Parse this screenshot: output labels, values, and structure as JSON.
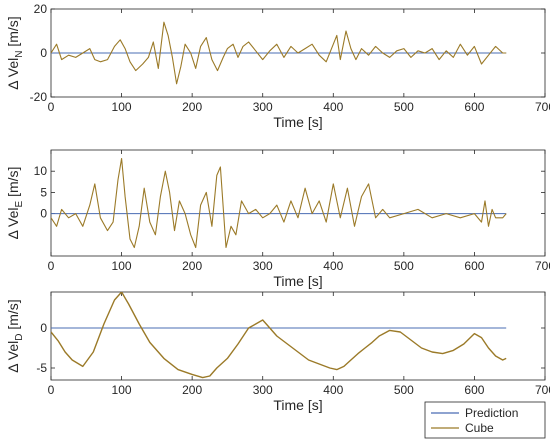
{
  "chart_data": [
    {
      "type": "line",
      "ylabel_main": "Δ Vel",
      "ylabel_sub": "N",
      "ylabel_unit": " [m/s]",
      "xlabel": "Time [s]",
      "xlim": [
        0,
        700
      ],
      "ylim": [
        -20,
        20
      ],
      "xticks": [
        0,
        100,
        200,
        300,
        400,
        500,
        600,
        700
      ],
      "yticks": [
        -20,
        0,
        20
      ],
      "series": [
        {
          "name": "Prediction",
          "color": "#4a6cb3",
          "x": [
            0,
            645
          ],
          "y": [
            0,
            0
          ]
        },
        {
          "name": "Cube",
          "color": "#9b7a28",
          "x": [
            0,
            8,
            15,
            25,
            35,
            45,
            55,
            62,
            70,
            80,
            90,
            98,
            105,
            112,
            120,
            130,
            138,
            145,
            152,
            160,
            166,
            172,
            178,
            184,
            190,
            198,
            205,
            212,
            220,
            228,
            236,
            244,
            250,
            258,
            265,
            272,
            280,
            290,
            300,
            310,
            320,
            330,
            340,
            350,
            360,
            370,
            380,
            390,
            400,
            405,
            410,
            418,
            425,
            432,
            440,
            450,
            460,
            470,
            480,
            490,
            500,
            510,
            520,
            530,
            540,
            550,
            560,
            570,
            580,
            590,
            600,
            610,
            620,
            630,
            640,
            645
          ],
          "y": [
            0,
            4,
            -3,
            -1,
            -2,
            0,
            2,
            -3,
            -4,
            -3,
            3,
            6,
            2,
            -4,
            -8,
            -5,
            -2,
            5,
            -7,
            14,
            8,
            -2,
            -14,
            -6,
            4,
            0,
            -7,
            3,
            7,
            -3,
            -8,
            -2,
            2,
            4,
            -2,
            3,
            5,
            1,
            -3,
            1,
            4,
            -2,
            3,
            0,
            2,
            4,
            -1,
            -4,
            4,
            8,
            -3,
            10,
            2,
            -3,
            2,
            -1,
            3,
            0,
            -2,
            1,
            2,
            -2,
            1,
            0,
            2,
            -3,
            1,
            -2,
            4,
            -1,
            3,
            -5,
            -1,
            3,
            0,
            0
          ]
        }
      ]
    },
    {
      "type": "line",
      "ylabel_main": "Δ Vel",
      "ylabel_sub": "E",
      "ylabel_unit": " [m/s]",
      "xlabel": "Time [s]",
      "xlim": [
        0,
        700
      ],
      "ylim": [
        -10,
        15
      ],
      "xticks": [
        0,
        100,
        200,
        300,
        400,
        500,
        600,
        700
      ],
      "yticks": [
        0,
        5,
        10
      ],
      "series": [
        {
          "name": "Prediction",
          "color": "#4a6cb3",
          "x": [
            0,
            645
          ],
          "y": [
            0,
            0
          ]
        },
        {
          "name": "Cube",
          "color": "#9b7a28",
          "x": [
            0,
            8,
            15,
            25,
            35,
            45,
            55,
            62,
            70,
            80,
            88,
            95,
            100,
            105,
            112,
            118,
            125,
            132,
            140,
            148,
            155,
            162,
            168,
            175,
            182,
            190,
            198,
            205,
            212,
            220,
            228,
            235,
            240,
            248,
            255,
            262,
            270,
            280,
            290,
            300,
            310,
            320,
            330,
            340,
            350,
            360,
            370,
            380,
            390,
            400,
            410,
            420,
            430,
            440,
            450,
            460,
            470,
            480,
            500,
            520,
            540,
            560,
            580,
            600,
            610,
            615,
            620,
            625,
            630,
            640,
            645
          ],
          "y": [
            -1,
            -3,
            1,
            -1,
            0,
            -3,
            2,
            7,
            -1,
            -4,
            -2,
            8,
            13,
            4,
            -6,
            -8,
            -3,
            6,
            -2,
            -5,
            4,
            10,
            5,
            -4,
            3,
            0,
            -5,
            -8,
            2,
            5,
            -3,
            9,
            11,
            -8,
            -3,
            -5,
            3,
            0,
            1,
            -1,
            0,
            2,
            -2,
            3,
            -1,
            6,
            0,
            3,
            -2,
            7,
            -1,
            6,
            -3,
            4,
            7,
            -1,
            1,
            -1,
            0,
            1,
            -1,
            0,
            -1,
            0,
            -2,
            3,
            -3,
            1,
            -1,
            -1,
            0
          ]
        }
      ]
    },
    {
      "type": "line",
      "ylabel_main": "Δ Vel",
      "ylabel_sub": "D",
      "ylabel_unit": " [m/s]",
      "xlabel": "Time [s]",
      "xlim": [
        0,
        700
      ],
      "ylim": [
        -6.5,
        4.5
      ],
      "xticks": [
        0,
        100,
        200,
        300,
        400,
        500,
        600,
        700
      ],
      "yticks": [
        -5,
        0
      ],
      "series": [
        {
          "name": "Prediction",
          "color": "#4a6cb3",
          "x": [
            0,
            645
          ],
          "y": [
            0,
            0
          ]
        },
        {
          "name": "Cube",
          "color": "#9b7a28",
          "x": [
            0,
            10,
            20,
            30,
            45,
            60,
            75,
            90,
            100,
            110,
            125,
            140,
            160,
            180,
            200,
            215,
            225,
            235,
            250,
            265,
            280,
            290,
            300,
            310,
            320,
            335,
            350,
            365,
            380,
            395,
            405,
            415,
            425,
            435,
            445,
            455,
            465,
            480,
            495,
            510,
            525,
            540,
            555,
            570,
            585,
            600,
            610,
            620,
            630,
            640,
            645
          ],
          "y": [
            -0.5,
            -1.6,
            -3,
            -4,
            -4.8,
            -3,
            0.5,
            3.5,
            4.5,
            3,
            0.5,
            -1.8,
            -3.8,
            -5.2,
            -5.8,
            -6.2,
            -6,
            -5,
            -3.8,
            -2,
            0,
            0.5,
            1,
            0,
            -1,
            -2,
            -3,
            -4,
            -4.5,
            -5,
            -5.2,
            -4.8,
            -4,
            -3.2,
            -2.5,
            -1.8,
            -1,
            -0.3,
            -0.5,
            -1.5,
            -2.5,
            -3,
            -3.2,
            -2.8,
            -2,
            -0.7,
            -1.2,
            -2.5,
            -3.5,
            -4,
            -3.8
          ]
        }
      ]
    }
  ],
  "legend": {
    "items": [
      {
        "label": "Prediction",
        "color": "#4a6cb3"
      },
      {
        "label": "Cube",
        "color": "#9b7a28"
      }
    ],
    "placement": "bottom-right"
  }
}
